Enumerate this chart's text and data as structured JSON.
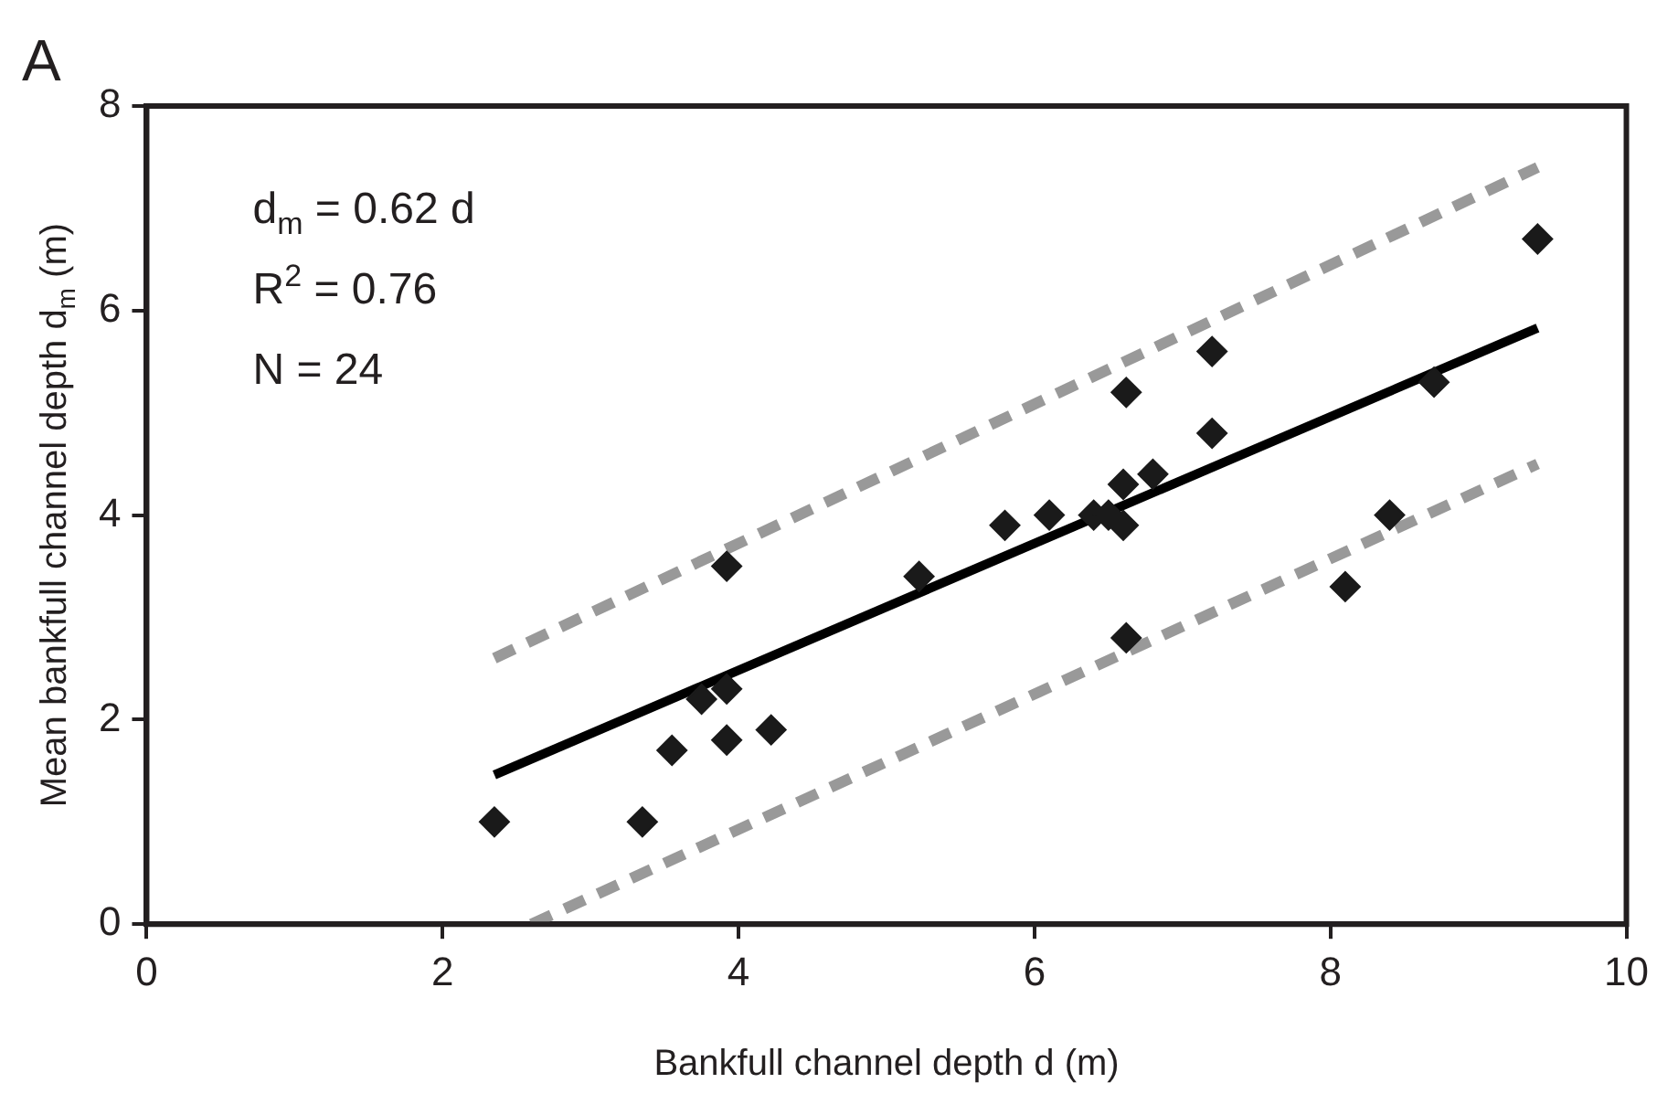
{
  "chart_data": {
    "type": "scatter",
    "xlabel": "Bankfull channel depth d (m)",
    "ylabel": "Mean bankfull channel depth d$_{m}$ (m)",
    "annotations": [
      "A",
      "d$_{m}$ = 0.62 d",
      "R$^{2}$ = 0.76",
      "N = 24"
    ],
    "xlim": [
      0,
      10
    ],
    "xticks": [
      0,
      2,
      4,
      6,
      8,
      10
    ],
    "ylim": [
      0,
      8
    ],
    "yticks": [
      0,
      2,
      4,
      6,
      8
    ],
    "series": [
      {
        "type": "scatter",
        "marker": "diamond",
        "color": "#1a1a1a",
        "x": [
          2.35,
          3.35,
          3.55,
          3.75,
          3.92,
          3.92,
          3.92,
          4.22,
          5.22,
          5.8,
          6.1,
          6.4,
          6.5,
          6.6,
          6.6,
          6.62,
          6.62,
          6.8,
          7.2,
          7.2,
          8.1,
          8.4,
          8.7,
          9.4
        ],
        "values": [
          1.0,
          1.0,
          1.7,
          2.2,
          2.3,
          1.8,
          3.5,
          1.9,
          3.4,
          3.9,
          4.0,
          4.0,
          4.0,
          4.3,
          3.9,
          5.2,
          2.8,
          4.4,
          4.8,
          5.6,
          3.3,
          4.0,
          5.3,
          6.7
        ]
      },
      {
        "type": "line",
        "marker": "none",
        "line_style": "solid",
        "color": "#000000",
        "x": [
          2.35,
          9.4
        ],
        "values": [
          1.46,
          5.83
        ]
      },
      {
        "type": "line",
        "marker": "none",
        "line_style": "dashed",
        "color": "#999999",
        "x": [
          2.35,
          9.4
        ],
        "values": [
          2.6,
          7.4
        ]
      },
      {
        "type": "line",
        "marker": "none",
        "line_style": "dashed",
        "color": "#999999",
        "x": [
          2.6,
          9.4
        ],
        "values": [
          0,
          4.5
        ]
      }
    ]
  }
}
